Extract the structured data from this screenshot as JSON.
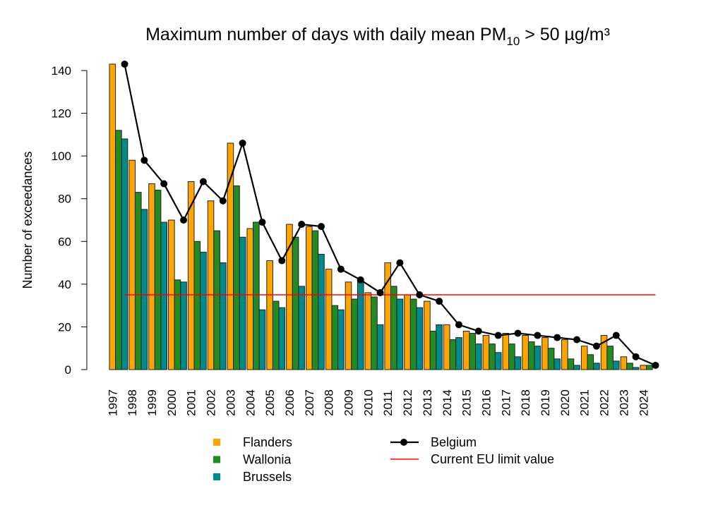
{
  "chart_data": {
    "type": "bar",
    "title": "Maximum number of days with daily mean PM",
    "title_subscript": "10",
    "title_suffix": " > 50 µg/m³",
    "xlabel": "",
    "ylabel": "Number of exceedances",
    "ylim": [
      0,
      140
    ],
    "yticks": [
      0,
      20,
      40,
      60,
      80,
      100,
      120,
      140
    ],
    "grid": false,
    "legend_position": "bottom",
    "categories": [
      "1997",
      "1998",
      "1999",
      "2000",
      "2001",
      "2002",
      "2003",
      "2004",
      "2005",
      "2006",
      "2007",
      "2008",
      "2009",
      "2010",
      "2011",
      "2012",
      "2013",
      "2014",
      "2015",
      "2016",
      "2017",
      "2018",
      "2019",
      "2020",
      "2021",
      "2022",
      "2023",
      "2024"
    ],
    "series": [
      {
        "name": "Flanders",
        "type": "bar",
        "color": "#FFA500",
        "values": [
          143,
          98,
          87,
          70,
          88,
          79,
          106,
          66,
          51,
          68,
          67,
          47,
          41,
          36,
          50,
          35,
          32,
          21,
          18,
          16,
          17,
          16,
          15,
          14,
          11,
          16,
          6,
          2
        ]
      },
      {
        "name": "Wallonia",
        "type": "bar",
        "color": "#228B22",
        "values": [
          112,
          83,
          84,
          42,
          60,
          65,
          86,
          69,
          32,
          62,
          65,
          30,
          33,
          34,
          39,
          33,
          18,
          14,
          17,
          12,
          12,
          13,
          10,
          5,
          7,
          11,
          3,
          2
        ]
      },
      {
        "name": "Brussels",
        "type": "bar",
        "color": "#008B8B",
        "values": [
          108,
          75,
          69,
          41,
          55,
          50,
          62,
          28,
          29,
          39,
          54,
          28,
          42,
          21,
          33,
          29,
          21,
          15,
          12,
          8,
          6,
          11,
          5,
          2,
          3,
          4,
          1,
          0
        ]
      },
      {
        "name": "Belgium",
        "type": "line",
        "color": "#000000",
        "values": [
          143,
          98,
          87,
          70,
          88,
          79,
          106,
          69,
          51,
          68,
          67,
          47,
          42,
          36,
          50,
          35,
          32,
          21,
          18,
          16,
          17,
          16,
          15,
          14,
          11,
          16,
          6,
          2
        ]
      }
    ],
    "reference_line": {
      "name": "Current EU limit value",
      "value": 35,
      "color": "#FF0000"
    }
  }
}
